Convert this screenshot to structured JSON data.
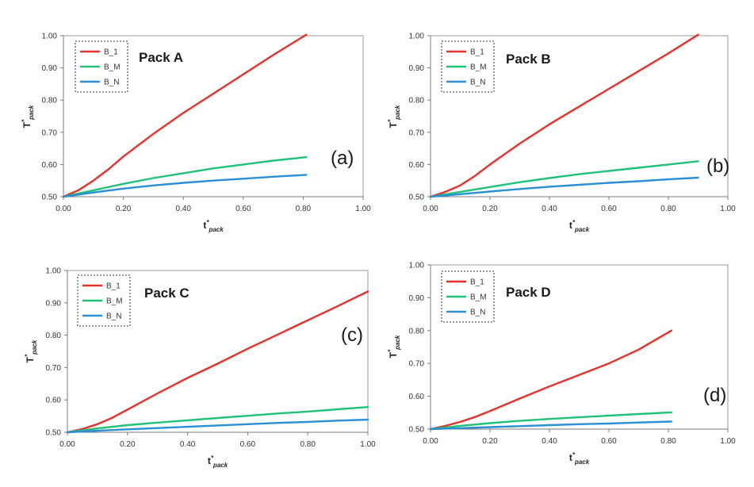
{
  "chart_data": [
    {
      "type": "line",
      "title": "Pack A",
      "panel_label": "(a)",
      "xlabel": "t*pack",
      "ylabel": "T*pack",
      "xlim": [
        0,
        1
      ],
      "ylim": [
        0.5,
        1
      ],
      "x_ticks": [
        "0.00",
        "0.20",
        "0.40",
        "0.60",
        "0.80",
        "1.00"
      ],
      "y_ticks": [
        "0.50",
        "0.60",
        "0.70",
        "0.80",
        "0.90",
        "1.00"
      ],
      "legend_placement": "top-left",
      "grid": false,
      "series": [
        {
          "name": "B_1",
          "color": "#e8302a",
          "x": [
            0,
            0.05,
            0.1,
            0.15,
            0.2,
            0.3,
            0.4,
            0.5,
            0.6,
            0.7,
            0.81
          ],
          "y": [
            0.5,
            0.52,
            0.55,
            0.585,
            0.625,
            0.695,
            0.76,
            0.82,
            0.88,
            0.94,
            1.003
          ]
        },
        {
          "name": "B_M",
          "color": "#1fc276",
          "x": [
            0,
            0.1,
            0.2,
            0.3,
            0.4,
            0.5,
            0.6,
            0.7,
            0.81
          ],
          "y": [
            0.5,
            0.52,
            0.54,
            0.558,
            0.573,
            0.588,
            0.6,
            0.612,
            0.623
          ]
        },
        {
          "name": "B_N",
          "color": "#2a8fd4",
          "x": [
            0,
            0.1,
            0.2,
            0.3,
            0.4,
            0.5,
            0.6,
            0.7,
            0.81
          ],
          "y": [
            0.5,
            0.513,
            0.525,
            0.535,
            0.543,
            0.55,
            0.556,
            0.562,
            0.568
          ]
        }
      ]
    },
    {
      "type": "line",
      "title": "Pack B",
      "panel_label": "(b)",
      "xlabel": "t*pack",
      "ylabel": "T*pack",
      "xlim": [
        0,
        1
      ],
      "ylim": [
        0.5,
        1
      ],
      "x_ticks": [
        "0.00",
        "0.20",
        "0.40",
        "0.60",
        "0.80",
        "1.00"
      ],
      "y_ticks": [
        "0.50",
        "0.60",
        "0.70",
        "0.80",
        "0.90",
        "1.00"
      ],
      "legend_placement": "top-left",
      "grid": false,
      "series": [
        {
          "name": "B_1",
          "color": "#e8302a",
          "x": [
            0,
            0.05,
            0.1,
            0.15,
            0.2,
            0.3,
            0.4,
            0.5,
            0.6,
            0.7,
            0.8,
            0.9
          ],
          "y": [
            0.5,
            0.515,
            0.535,
            0.565,
            0.6,
            0.665,
            0.725,
            0.78,
            0.835,
            0.89,
            0.945,
            1.003
          ]
        },
        {
          "name": "B_M",
          "color": "#1fc276",
          "x": [
            0,
            0.1,
            0.2,
            0.3,
            0.4,
            0.5,
            0.6,
            0.7,
            0.8,
            0.9
          ],
          "y": [
            0.5,
            0.515,
            0.53,
            0.545,
            0.558,
            0.57,
            0.58,
            0.59,
            0.6,
            0.61
          ]
        },
        {
          "name": "B_N",
          "color": "#2a8fd4",
          "x": [
            0,
            0.1,
            0.2,
            0.3,
            0.4,
            0.5,
            0.6,
            0.7,
            0.8,
            0.9
          ],
          "y": [
            0.5,
            0.508,
            0.516,
            0.524,
            0.531,
            0.537,
            0.543,
            0.548,
            0.554,
            0.559
          ]
        }
      ]
    },
    {
      "type": "line",
      "title": "Pack C",
      "panel_label": "(c)",
      "xlabel": "t*pack",
      "ylabel": "T*pack",
      "xlim": [
        0,
        1
      ],
      "ylim": [
        0.5,
        1
      ],
      "x_ticks": [
        "0.00",
        "0.20",
        "0.40",
        "0.60",
        "0.80",
        "1.00"
      ],
      "y_ticks": [
        "0.50",
        "0.60",
        "0.70",
        "0.80",
        "0.90",
        "1.00"
      ],
      "legend_placement": "top-left",
      "grid": false,
      "series": [
        {
          "name": "B_1",
          "color": "#e8302a",
          "x": [
            0,
            0.05,
            0.1,
            0.15,
            0.2,
            0.3,
            0.4,
            0.5,
            0.6,
            0.7,
            0.8,
            0.9,
            1.0
          ],
          "y": [
            0.5,
            0.51,
            0.525,
            0.545,
            0.57,
            0.62,
            0.668,
            0.712,
            0.758,
            0.802,
            0.846,
            0.89,
            0.935
          ]
        },
        {
          "name": "B_M",
          "color": "#1fc276",
          "x": [
            0,
            0.1,
            0.2,
            0.3,
            0.4,
            0.5,
            0.6,
            0.7,
            0.8,
            0.9,
            1.0
          ],
          "y": [
            0.5,
            0.512,
            0.522,
            0.53,
            0.537,
            0.544,
            0.551,
            0.558,
            0.564,
            0.571,
            0.578
          ]
        },
        {
          "name": "B_N",
          "color": "#2a8fd4",
          "x": [
            0,
            0.1,
            0.2,
            0.3,
            0.4,
            0.5,
            0.6,
            0.7,
            0.8,
            0.9,
            1.0
          ],
          "y": [
            0.5,
            0.505,
            0.509,
            0.513,
            0.517,
            0.521,
            0.525,
            0.529,
            0.532,
            0.536,
            0.539
          ]
        }
      ]
    },
    {
      "type": "line",
      "title": "Pack D",
      "panel_label": "(d)",
      "xlabel": "t*pack",
      "ylabel": "T*pack",
      "xlim": [
        0,
        1
      ],
      "ylim": [
        0.5,
        1
      ],
      "x_ticks": [
        "0.00",
        "0.20",
        "0.40",
        "0.60",
        "0.80",
        "1.00"
      ],
      "y_ticks": [
        "0.50",
        "0.60",
        "0.70",
        "0.80",
        "0.90",
        "1.00"
      ],
      "legend_placement": "top-left",
      "grid": false,
      "series": [
        {
          "name": "B_1",
          "color": "#e8302a",
          "x": [
            0,
            0.05,
            0.1,
            0.15,
            0.2,
            0.3,
            0.4,
            0.5,
            0.6,
            0.7,
            0.81
          ],
          "y": [
            0.5,
            0.51,
            0.522,
            0.537,
            0.555,
            0.593,
            0.63,
            0.665,
            0.7,
            0.742,
            0.8
          ]
        },
        {
          "name": "B_M",
          "color": "#1fc276",
          "x": [
            0,
            0.1,
            0.2,
            0.3,
            0.4,
            0.5,
            0.6,
            0.7,
            0.81
          ],
          "y": [
            0.5,
            0.51,
            0.518,
            0.525,
            0.531,
            0.536,
            0.541,
            0.546,
            0.551
          ]
        },
        {
          "name": "B_N",
          "color": "#2a8fd4",
          "x": [
            0,
            0.1,
            0.2,
            0.3,
            0.4,
            0.5,
            0.6,
            0.7,
            0.81
          ],
          "y": [
            0.5,
            0.503,
            0.506,
            0.509,
            0.512,
            0.515,
            0.517,
            0.52,
            0.523
          ]
        }
      ]
    }
  ]
}
